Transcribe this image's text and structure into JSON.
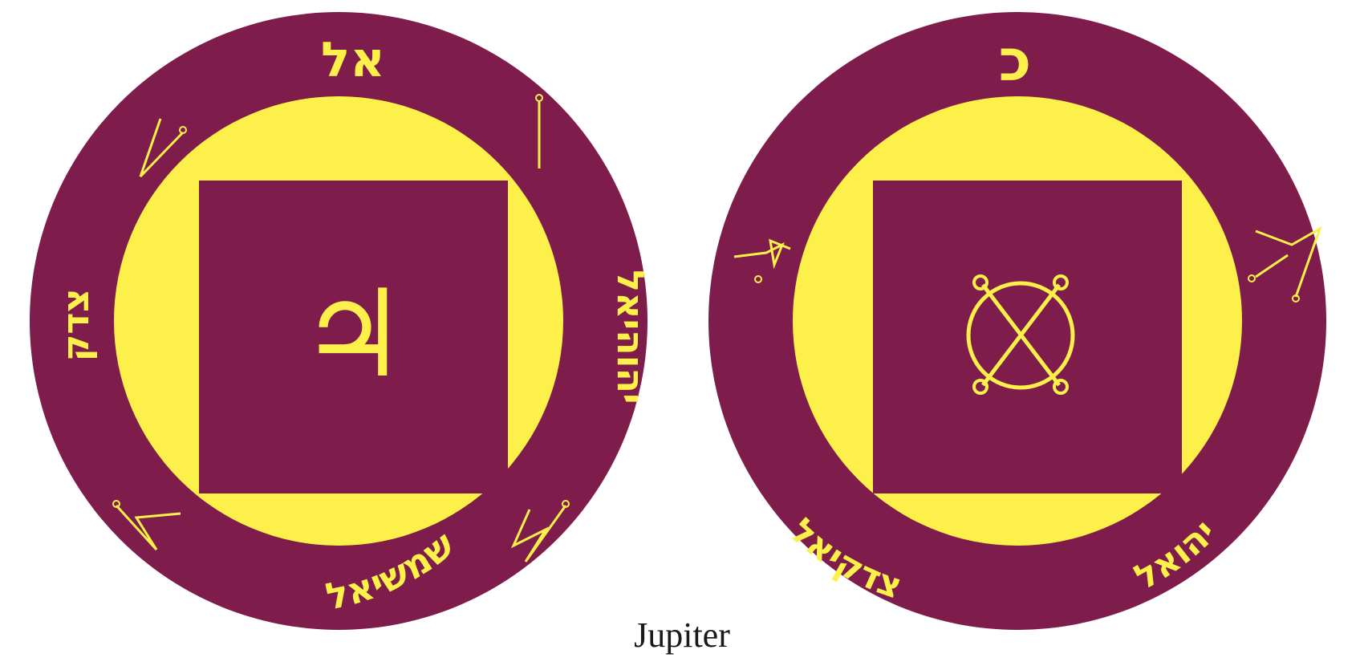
{
  "colors": {
    "outer_ring": "#7e1c4b",
    "inner_disc": "#fdf04a",
    "square": "#7e1c4b",
    "glyph": "#fdf04a"
  },
  "left_pentacle": {
    "top_inscription": "אל",
    "left_inscription": "צדק",
    "right_inscription": "יהוהיאל",
    "bottom_inscription": "שמשיאל",
    "center_glyph": "♃",
    "sigil_icons": [
      "sigil-upper-left-icon",
      "sigil-upper-right-icon",
      "sigil-lower-left-icon",
      "sigil-lower-right-icon"
    ]
  },
  "right_pentacle": {
    "top_inscription": "כ",
    "bottom_left_inscription": "צדקיאל",
    "bottom_right_inscription": "יהואל",
    "center_icon": "crossed-circle-sigil-icon",
    "sigil_icons": [
      "sigil-left-icon",
      "sigil-right-icon"
    ]
  },
  "caption": "Jupiter"
}
